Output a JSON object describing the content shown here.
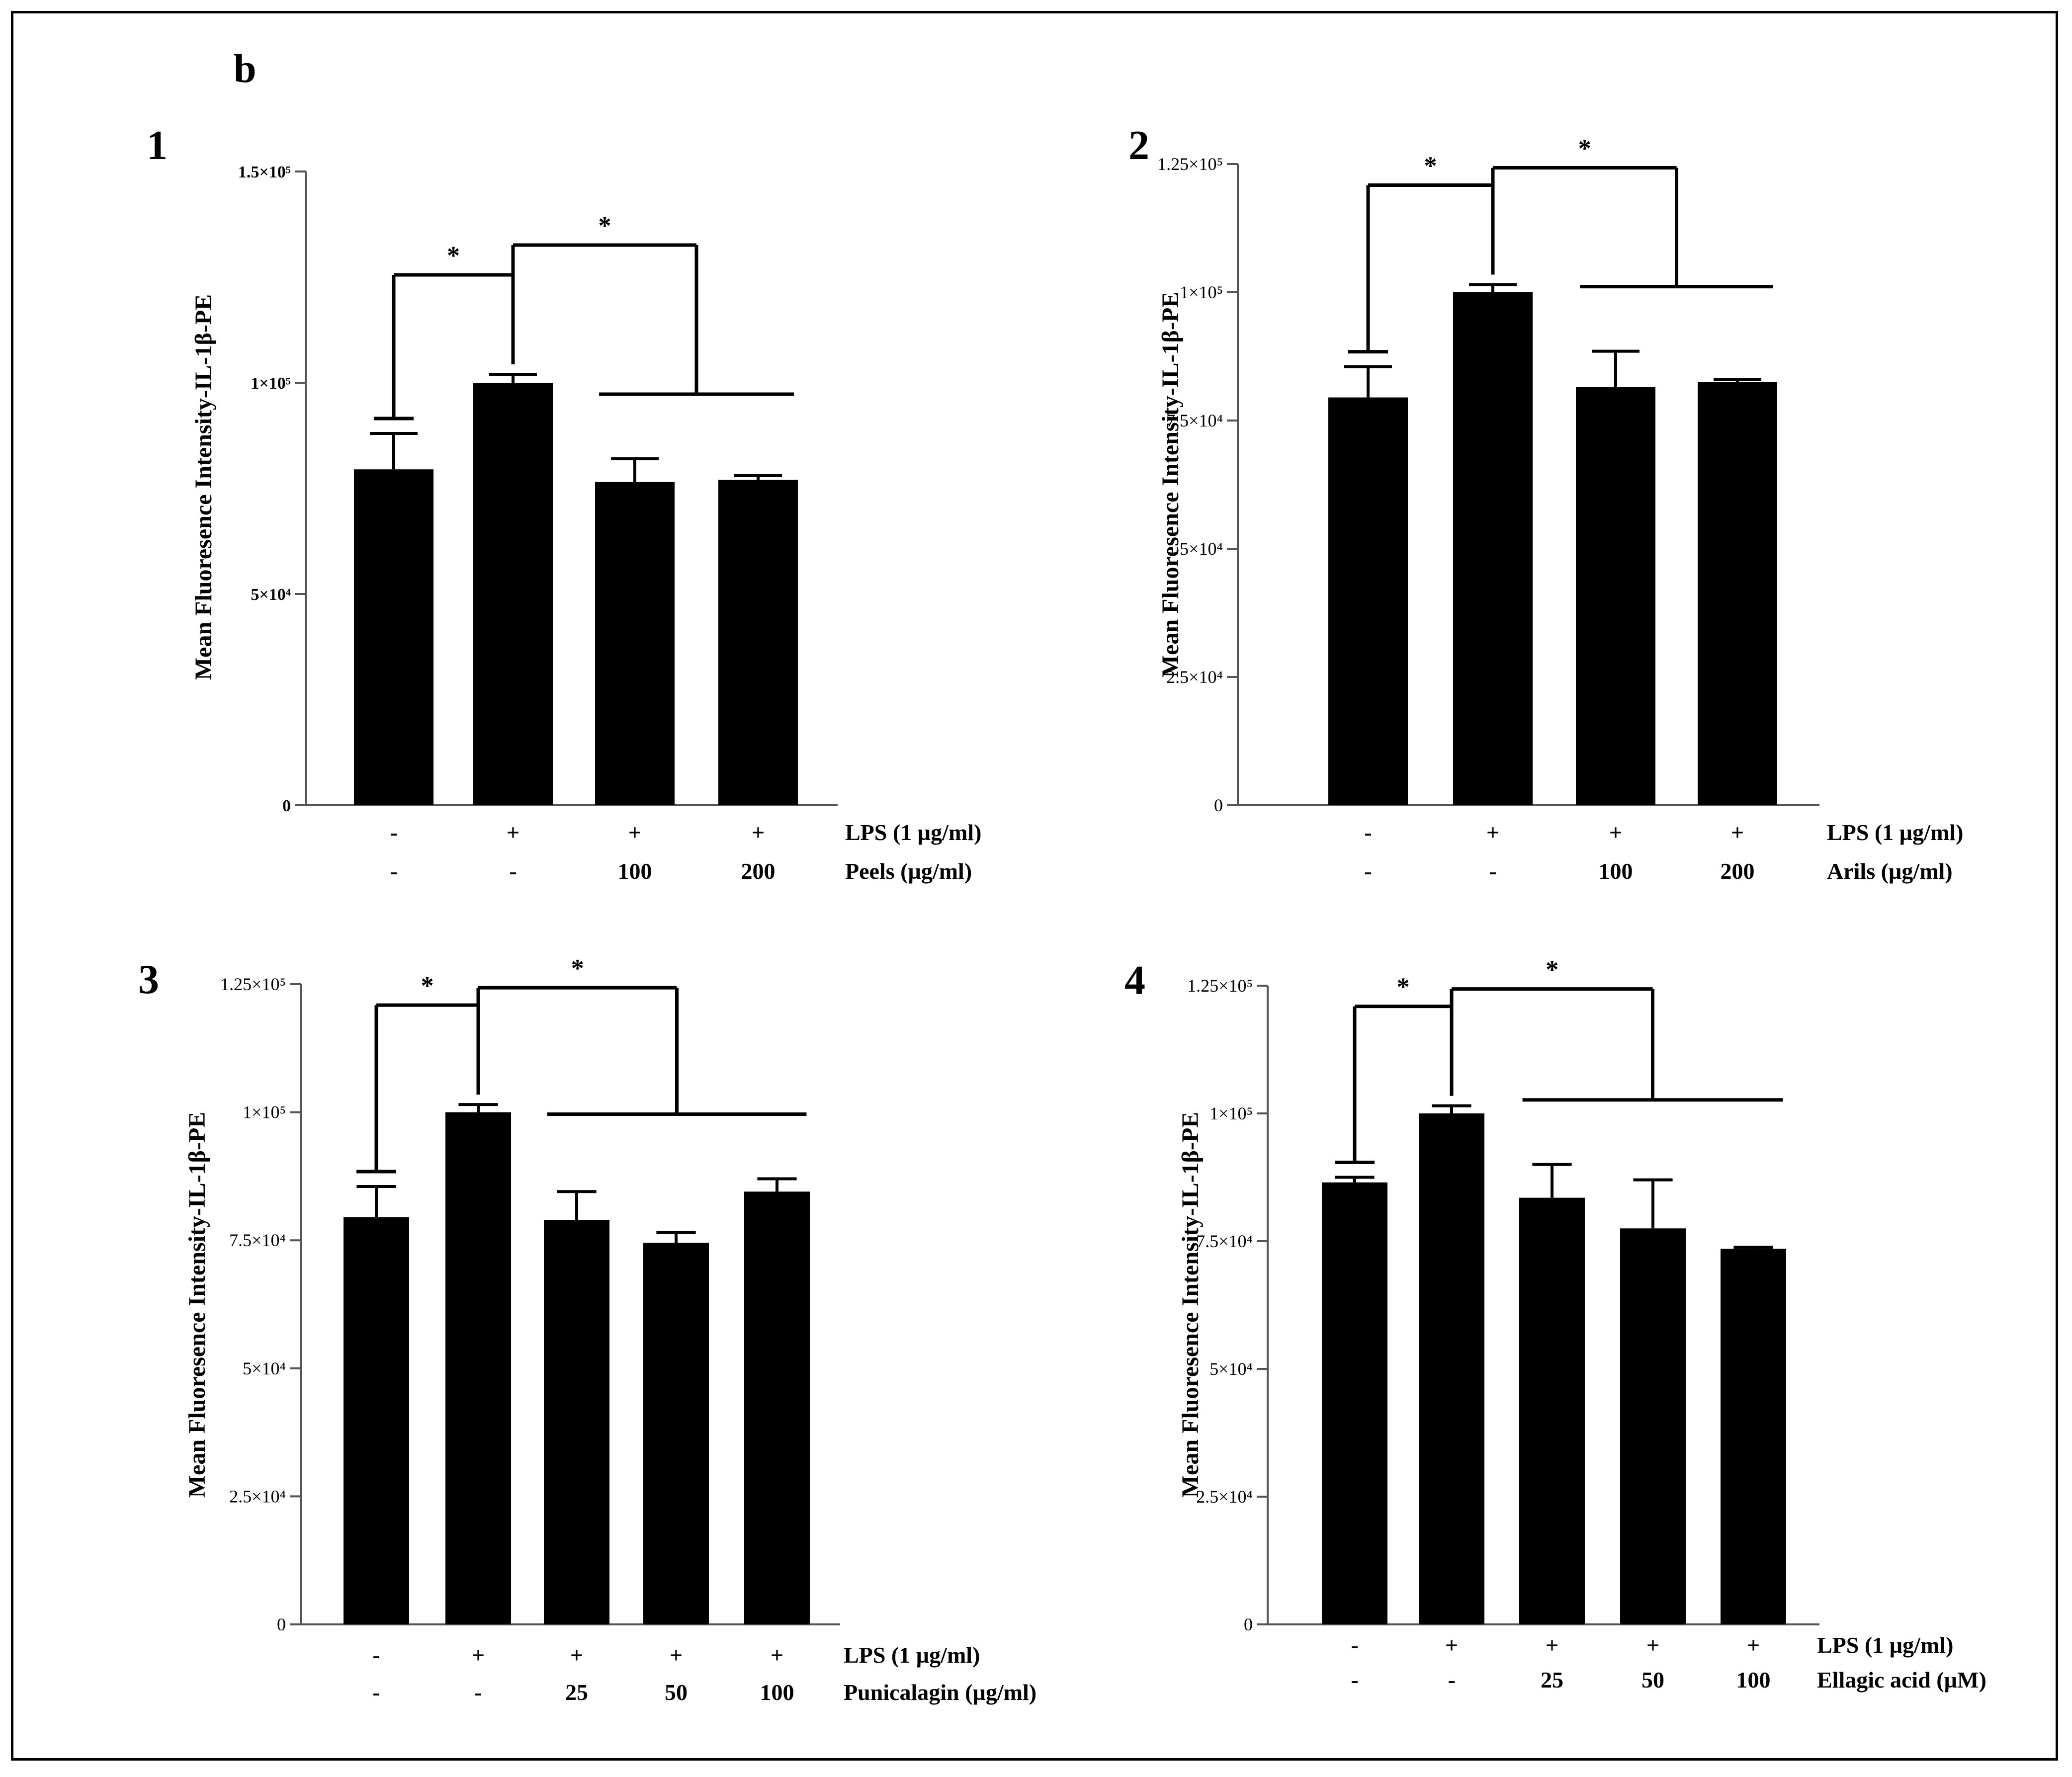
{
  "figure": {
    "label": "b",
    "colors": {
      "bars": "#000000",
      "background": "#ffffff",
      "text": "#000000"
    }
  },
  "chart_data": [
    {
      "panel": "1",
      "type": "bar",
      "title": "",
      "ylabel": "Mean Fluoresence Intensity-IL-1β-PE",
      "ylim": [
        0,
        150000
      ],
      "yticks": [
        {
          "value": 0,
          "label": "0"
        },
        {
          "value": 50000,
          "label": "5×10⁴"
        },
        {
          "value": 100000,
          "label": "1×10⁵"
        },
        {
          "value": 150000,
          "label": "1.5×10⁵"
        }
      ],
      "values": [
        79500,
        100000,
        76500,
        77000
      ],
      "errors": [
        8500,
        2000,
        5500,
        1000
      ],
      "rows": [
        {
          "label": "LPS  (1 µg/ml)",
          "cells": [
            "-",
            "+",
            "+",
            "+"
          ]
        },
        {
          "label": "Peels (µg/ml)",
          "cells": [
            "-",
            "-",
            "100",
            "200"
          ]
        }
      ],
      "significance": [
        {
          "type": "pair",
          "from": 0,
          "to": 1,
          "label": "*"
        },
        {
          "type": "group",
          "from": 1,
          "to_group": [
            2,
            3
          ],
          "label": "*"
        }
      ]
    },
    {
      "panel": "2",
      "type": "bar",
      "title": "",
      "ylabel": "Mean Fluoresence Intensity-IL-1β-PE",
      "ylim": [
        0,
        125000
      ],
      "yticks": [
        {
          "value": 0,
          "label": "0"
        },
        {
          "value": 25000,
          "label": "2.5×10⁴"
        },
        {
          "value": 50000,
          "label": "5×10⁴"
        },
        {
          "value": 75000,
          "label": "7.5×10⁴"
        },
        {
          "value": 100000,
          "label": "1×10⁵"
        },
        {
          "value": 125000,
          "label": "1.25×10⁵"
        }
      ],
      "values": [
        79500,
        100000,
        81500,
        82500
      ],
      "errors": [
        6000,
        1500,
        7000,
        500
      ],
      "rows": [
        {
          "label": "LPS  (1 µg/ml)",
          "cells": [
            "-",
            "+",
            "+",
            "+"
          ]
        },
        {
          "label": "Arils (µg/ml)",
          "cells": [
            "-",
            "-",
            "100",
            "200"
          ]
        }
      ],
      "significance": [
        {
          "type": "pair",
          "from": 0,
          "to": 1,
          "label": "*"
        },
        {
          "type": "group",
          "from": 1,
          "to_group": [
            2,
            3
          ],
          "label": "*"
        }
      ]
    },
    {
      "panel": "3",
      "type": "bar",
      "title": "",
      "ylabel": "Mean Fluoresence Intensity-IL-1β-PE",
      "ylim": [
        0,
        125000
      ],
      "yticks": [
        {
          "value": 0,
          "label": "0"
        },
        {
          "value": 25000,
          "label": "2.5×10⁴"
        },
        {
          "value": 50000,
          "label": "5×10⁴"
        },
        {
          "value": 75000,
          "label": "7.5×10⁴"
        },
        {
          "value": 100000,
          "label": "1×10⁵"
        },
        {
          "value": 125000,
          "label": "1.25×10⁵"
        }
      ],
      "values": [
        79500,
        100000,
        79000,
        74500,
        84500
      ],
      "errors": [
        6000,
        1500,
        5500,
        2000,
        2500
      ],
      "rows": [
        {
          "label": "LPS  (1 µg/ml)",
          "cells": [
            "-",
            "+",
            "+",
            "+",
            "+"
          ]
        },
        {
          "label": "Punicalagin (µg/ml)",
          "cells": [
            "-",
            "-",
            "25",
            "50",
            "100"
          ]
        }
      ],
      "significance": [
        {
          "type": "pair",
          "from": 0,
          "to": 1,
          "label": "*"
        },
        {
          "type": "group",
          "from": 1,
          "to_group": [
            2,
            4
          ],
          "label": "*"
        }
      ]
    },
    {
      "panel": "4",
      "type": "bar",
      "title": "",
      "ylabel": "Mean Fluoresence Intensity-IL-1β-PE",
      "ylim": [
        0,
        125000
      ],
      "yticks": [
        {
          "value": 0,
          "label": "0"
        },
        {
          "value": 25000,
          "label": "2.5×10⁴"
        },
        {
          "value": 50000,
          "label": "5×10⁴"
        },
        {
          "value": 75000,
          "label": "7.5×10⁴"
        },
        {
          "value": 100000,
          "label": "1×10⁵"
        },
        {
          "value": 125000,
          "label": "1.25×10⁵"
        }
      ],
      "values": [
        86500,
        100000,
        83500,
        77500,
        73500
      ],
      "errors": [
        1000,
        1500,
        6500,
        9500,
        300
      ],
      "rows": [
        {
          "label": "LPS  (1 µg/ml)",
          "cells": [
            "-",
            "+",
            "+",
            "+",
            "+"
          ]
        },
        {
          "label": "Ellagic acid (µM)",
          "cells": [
            "-",
            "-",
            "25",
            "50",
            "100"
          ]
        }
      ],
      "significance": [
        {
          "type": "pair",
          "from": 0,
          "to": 1,
          "label": "*"
        },
        {
          "type": "group",
          "from": 1,
          "to_group": [
            2,
            4
          ],
          "label": "*"
        }
      ]
    }
  ]
}
